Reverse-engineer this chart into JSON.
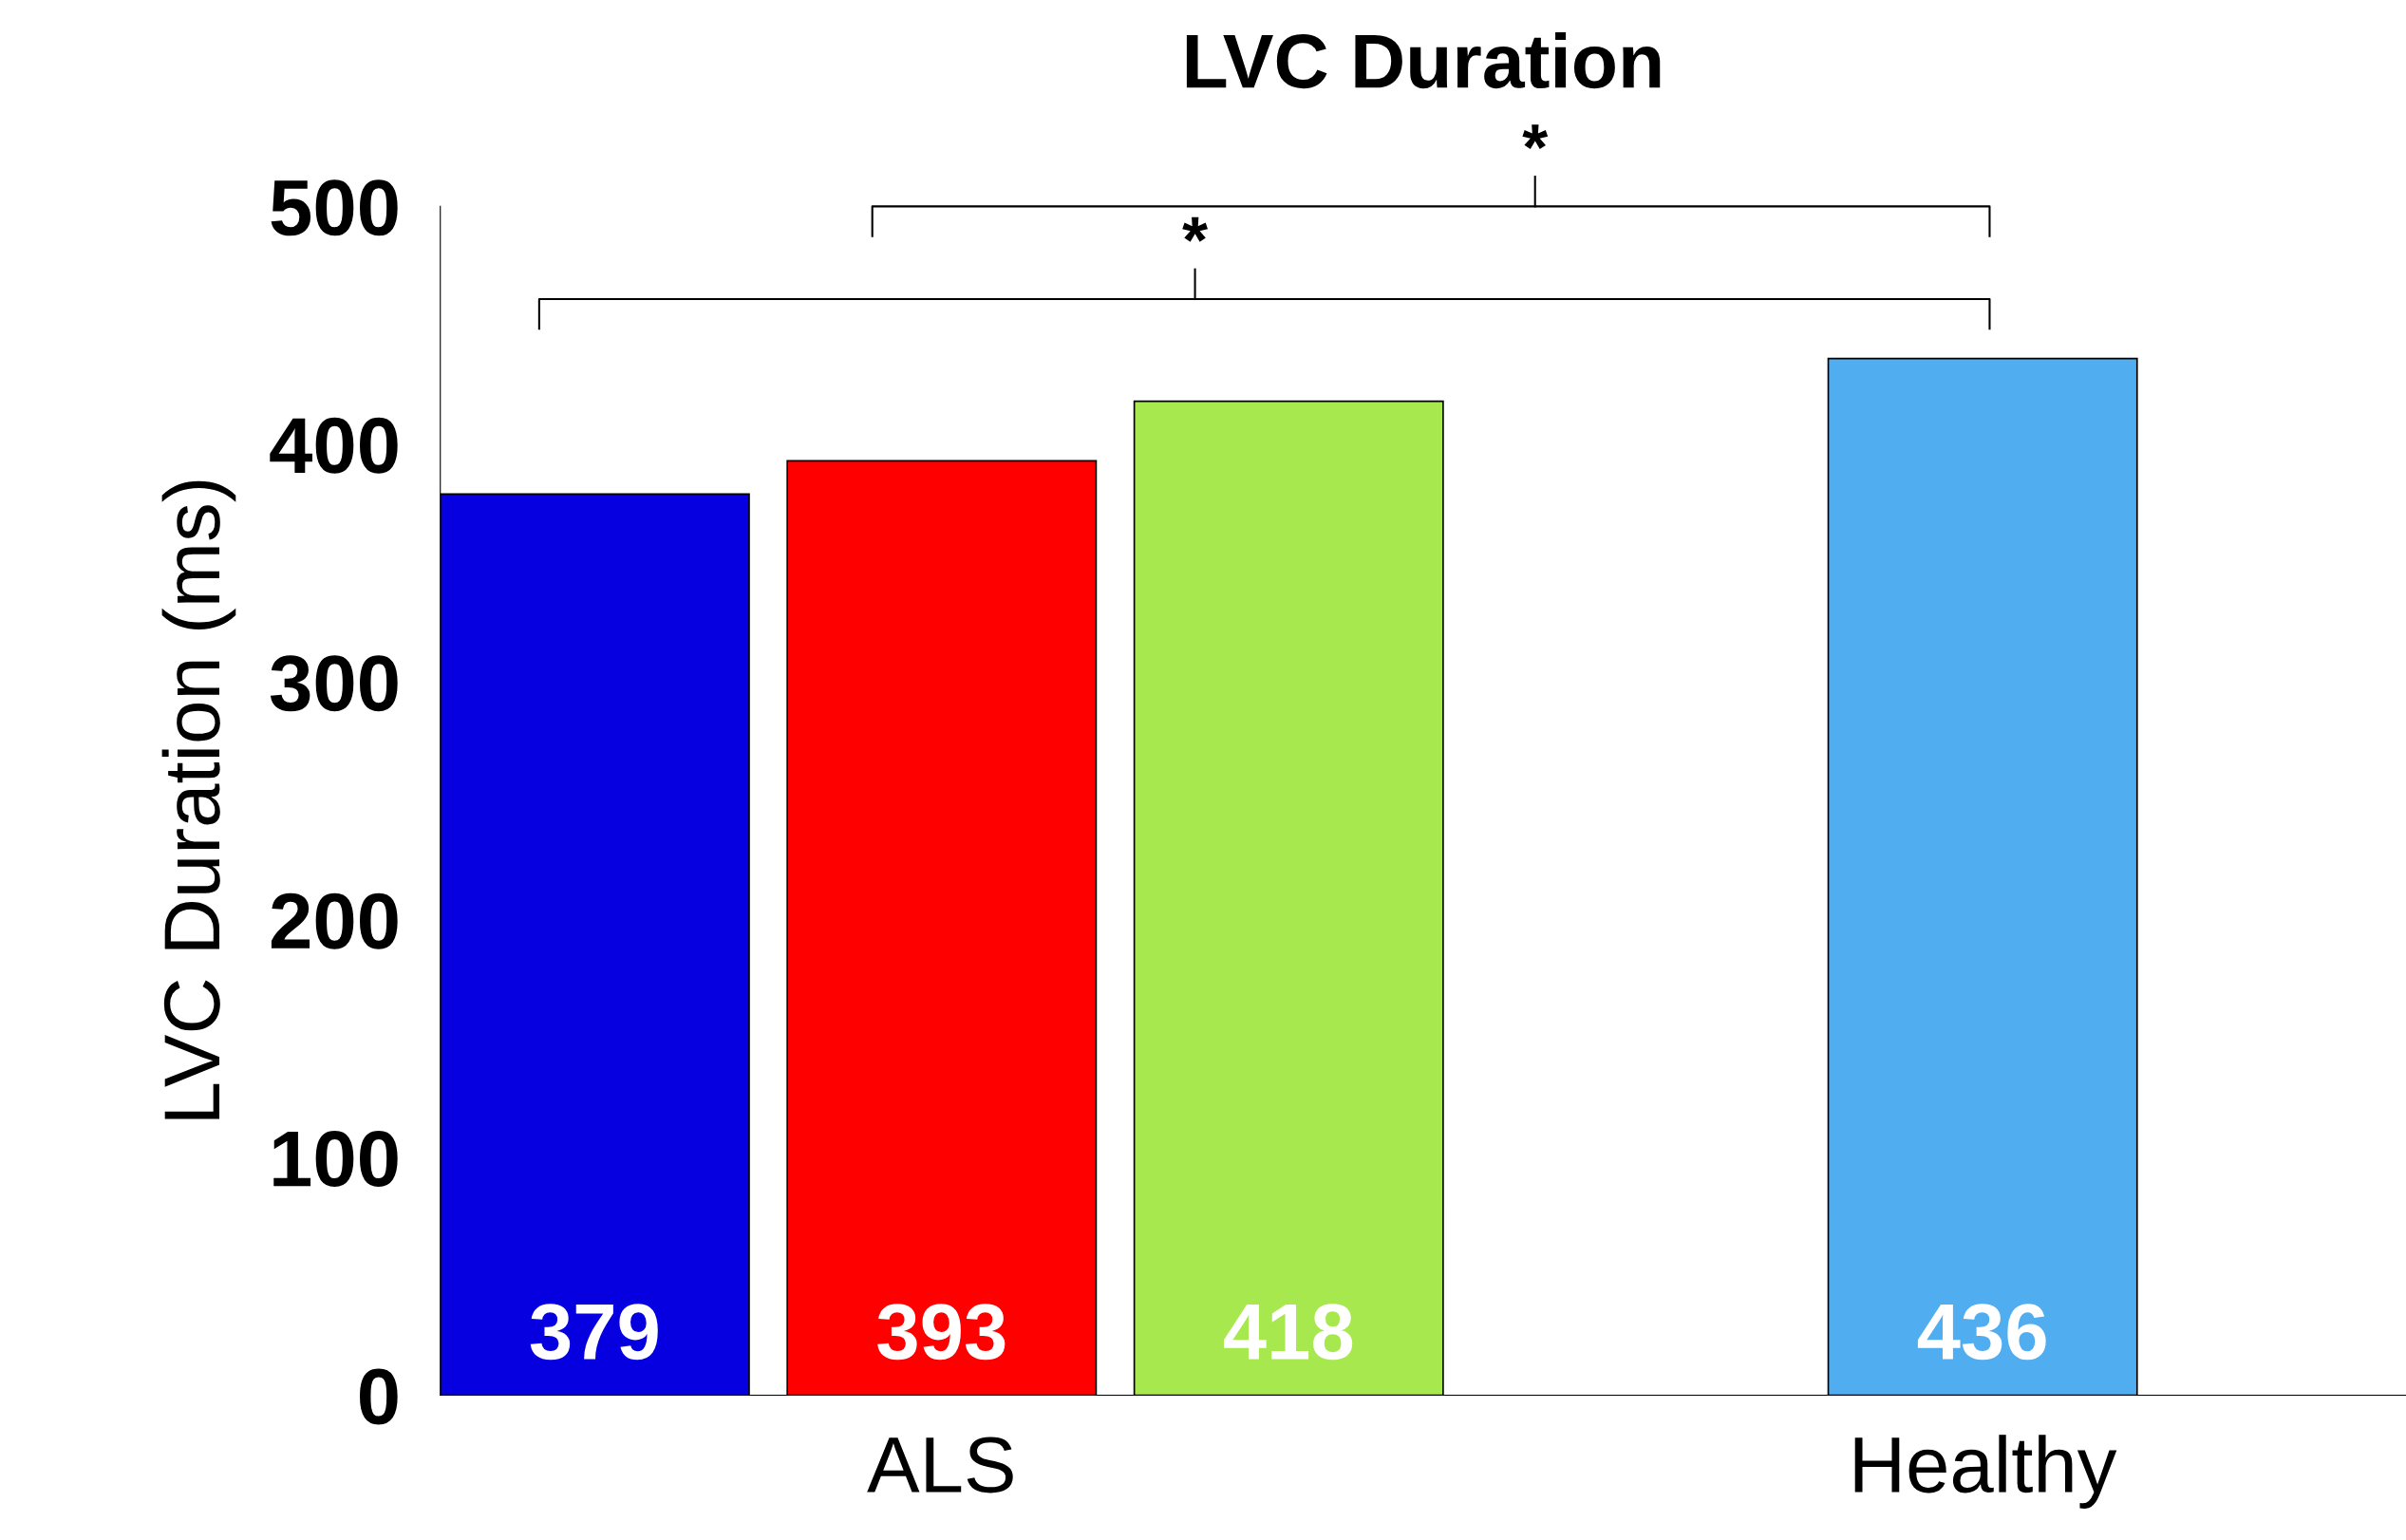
{
  "chart_data": {
    "type": "bar",
    "title": "LVC Duration",
    "ylabel": "LVC Duration (ms)",
    "categories": [
      null,
      "ALS",
      null,
      null,
      "Healthy"
    ],
    "values": [
      379,
      393,
      418,
      null,
      436
    ],
    "colors": [
      "#0600e0",
      "#ff0000",
      "#a8e84f",
      "#ffffff",
      "#50adf0"
    ],
    "ylim": [
      0,
      500
    ],
    "yticks": [
      0,
      100,
      200,
      300,
      400,
      500
    ],
    "data_labels": true,
    "grid": false,
    "legend": false,
    "annotations": [
      "*",
      "*"
    ]
  }
}
